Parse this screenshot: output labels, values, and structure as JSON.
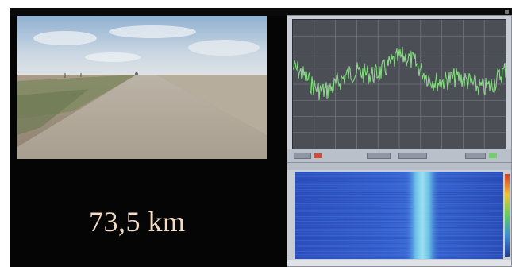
{
  "window": {
    "title": ""
  },
  "display": {
    "distance_text": "73,5 km"
  },
  "panels": {
    "video": {
      "content": "road-camera-view"
    },
    "oscilloscope": {
      "trace_color": "#8ee88a",
      "grid_color": "#6f747b"
    },
    "spectrogram": {
      "background_color": "#2f55c8",
      "band_color": "#8fe0f0"
    }
  },
  "colors": {
    "background": "#050505",
    "panel_frame": "#c9ced6",
    "distance_text": "#f3dcc6"
  }
}
